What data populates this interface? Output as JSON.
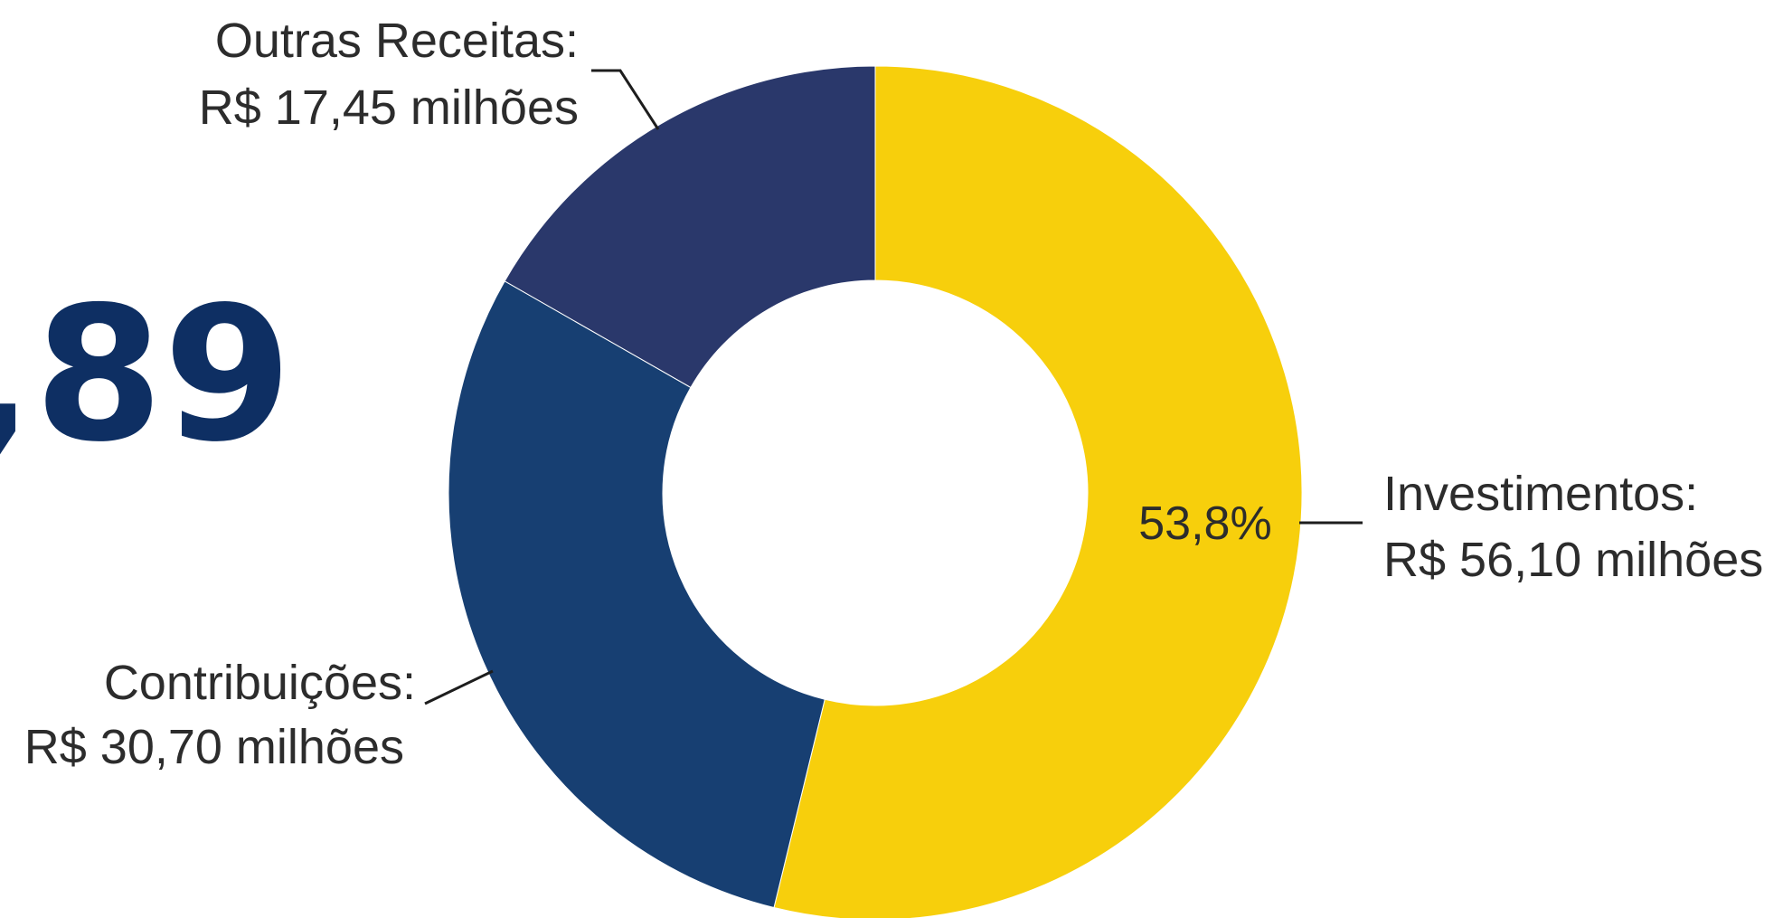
{
  "headline": {
    "value": ",89",
    "color": "#0e2f63"
  },
  "chart_data": {
    "type": "pie",
    "variant": "donut",
    "categories": [
      "Investimentos",
      "Contribuições",
      "Outras Receitas"
    ],
    "values": [
      56.1,
      30.7,
      17.45
    ],
    "unit": "R$ milhões",
    "colors": [
      "#f7cf0c",
      "#173f72",
      "#2a386b"
    ],
    "slices": [
      {
        "category": "Investimentos",
        "value": 56.1,
        "label_line1": "Investimentos:",
        "label_line2": "R$ 56,10 milhões",
        "percent_label": "53,8%"
      },
      {
        "category": "Contribuições",
        "value": 30.7,
        "label_line1": "Contribuições:",
        "label_line2": "R$ 30,70 milhões",
        "percent_label": ""
      },
      {
        "category": "Outras Receitas",
        "value": 17.45,
        "label_line1": "Outras Receitas:",
        "label_line2": "R$ 17,45 milhões",
        "percent_label": ""
      }
    ]
  }
}
